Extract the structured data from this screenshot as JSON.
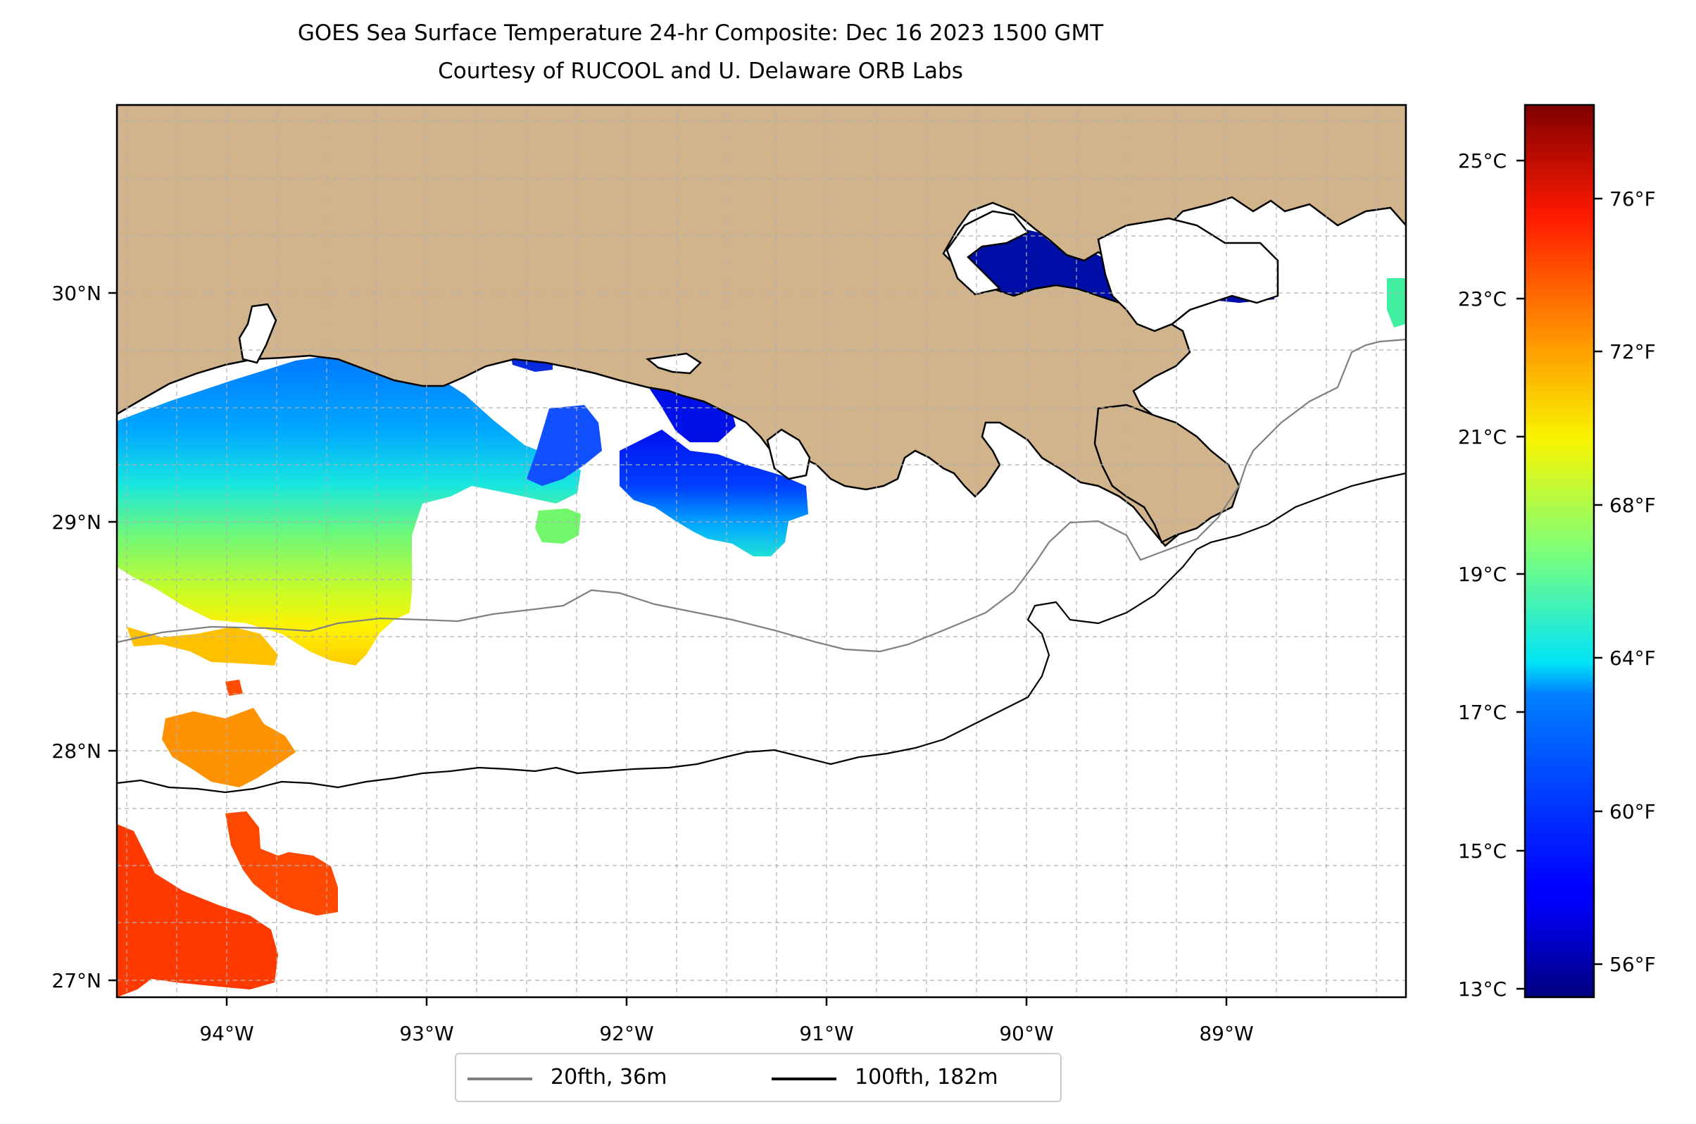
{
  "title": "GOES Sea Surface Temperature 24-hr Composite: Dec 16 2023 1500 GMT",
  "subtitle": "Courtesy of RUCOOL and U. Delaware ORB Labs",
  "map": {
    "extent": {
      "lon_min": -94.55,
      "lon_max": -88.12,
      "lat_min": 26.93,
      "lat_max": 30.85
    },
    "land_color": "#d2b48c",
    "grid": true,
    "lon_ticks": [
      {
        "value": -94,
        "label": "94°W"
      },
      {
        "value": -93,
        "label": "93°W"
      },
      {
        "value": -92,
        "label": "92°W"
      },
      {
        "value": -91,
        "label": "91°W"
      },
      {
        "value": -90,
        "label": "90°W"
      },
      {
        "value": -89,
        "label": "89°W"
      }
    ],
    "lat_ticks": [
      {
        "value": 27,
        "label": "27°N"
      },
      {
        "value": 28,
        "label": "28°N"
      },
      {
        "value": 29,
        "label": "29°N"
      },
      {
        "value": 30,
        "label": "30°N"
      }
    ]
  },
  "legend": {
    "items": [
      {
        "label": "20fth, 36m",
        "color": "#808080"
      },
      {
        "label": "100fth, 182m",
        "color": "#000000"
      }
    ]
  },
  "colorbar": {
    "colormap": "jet",
    "vmin_c": 12.9,
    "vmax_c": 25.8,
    "celsius_ticks": [
      {
        "value": 13,
        "label": "13°C"
      },
      {
        "value": 15,
        "label": "15°C"
      },
      {
        "value": 17,
        "label": "17°C"
      },
      {
        "value": 19,
        "label": "19°C"
      },
      {
        "value": 21,
        "label": "21°C"
      },
      {
        "value": 23,
        "label": "23°C"
      },
      {
        "value": 25,
        "label": "25°C"
      }
    ],
    "fahrenheit_ticks": [
      {
        "value": 56,
        "label": "56°F"
      },
      {
        "value": 60,
        "label": "60°F"
      },
      {
        "value": 64,
        "label": "64°F"
      },
      {
        "value": 68,
        "label": "68°F"
      },
      {
        "value": 72,
        "label": "72°F"
      },
      {
        "value": 76,
        "label": "76°F"
      }
    ]
  }
}
